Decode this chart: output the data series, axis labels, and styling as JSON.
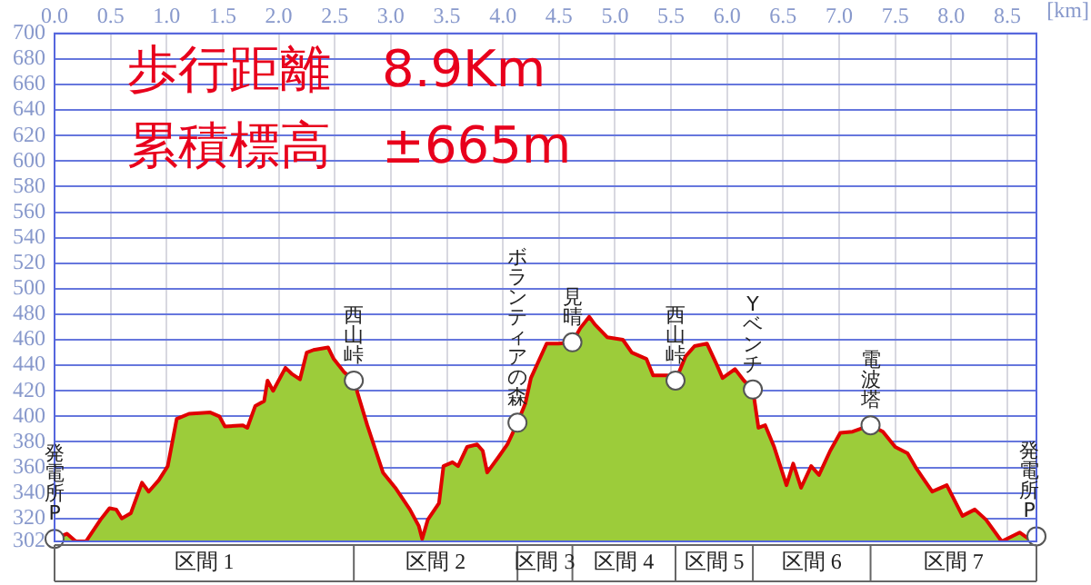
{
  "chart_data": {
    "type": "area",
    "xlabel": "[km]",
    "annotations": [
      "歩行距離　8.9Km",
      "累積標高　±665m",
      "区間 1",
      "区間 2",
      "区間 3",
      "区間 4",
      "区間 5",
      "区間 6",
      "区間 7"
    ],
    "xlim": [
      0,
      8.76
    ],
    "ylim": [
      302,
      700
    ],
    "xticks": [
      {
        "value": 0,
        "label": "0.0"
      },
      {
        "value": 0.5,
        "label": "0.5"
      },
      {
        "value": 1,
        "label": "1.0"
      },
      {
        "value": 1.5,
        "label": "1.5"
      },
      {
        "value": 2,
        "label": "2.0"
      },
      {
        "value": 2.5,
        "label": "2.5"
      },
      {
        "value": 3,
        "label": "3.0"
      },
      {
        "value": 3.5,
        "label": "3.5"
      },
      {
        "value": 4,
        "label": "4.0"
      },
      {
        "value": 4.5,
        "label": "4.5"
      },
      {
        "value": 5,
        "label": "5.0"
      },
      {
        "value": 5.5,
        "label": "5.5"
      },
      {
        "value": 6,
        "label": "6.0"
      },
      {
        "value": 6.5,
        "label": "6.5"
      },
      {
        "value": 7,
        "label": "7.0"
      },
      {
        "value": 7.5,
        "label": "7.5"
      },
      {
        "value": 8,
        "label": "8.0"
      },
      {
        "value": 8.5,
        "label": "8.5"
      }
    ],
    "yticks": [
      302,
      320,
      340,
      360,
      380,
      400,
      420,
      440,
      460,
      480,
      500,
      520,
      540,
      560,
      580,
      600,
      620,
      640,
      660,
      680,
      700
    ],
    "grid": true,
    "legend": false,
    "series": [
      {
        "color": "#9ccc3a",
        "x": [
          0,
          0.11,
          0.19,
          0.28,
          0.41,
          0.49,
          0.55,
          0.6,
          0.68,
          0.78,
          0.84,
          0.93,
          1.01,
          1.09,
          1.2,
          1.39,
          1.47,
          1.52,
          1.68,
          1.72,
          1.79,
          1.87,
          1.9,
          1.95,
          2.06,
          2.12,
          2.19,
          2.25,
          2.31,
          2.44,
          2.49,
          2.58,
          2.67,
          2.79,
          2.93,
          3.04,
          3.17,
          3.25,
          3.28,
          3.33,
          3.43,
          3.47,
          3.55,
          3.6,
          3.68,
          3.77,
          3.82,
          3.86,
          3.96,
          4.04,
          4.13,
          4.2,
          4.25,
          4.39,
          4.5,
          4.62,
          4.69,
          4.77,
          4.82,
          4.93,
          5.07,
          5.15,
          5.28,
          5.34,
          5.47,
          5.54,
          5.63,
          5.71,
          5.82,
          5.9,
          5.96,
          6.07,
          6.15,
          6.23,
          6.28,
          6.34,
          6.42,
          6.53,
          6.59,
          6.66,
          6.75,
          6.82,
          6.92,
          7.01,
          7.12,
          7.28,
          7.39,
          7.5,
          7.61,
          7.69,
          7.83,
          7.96,
          8.1,
          8.21,
          8.31,
          8.45,
          8.61,
          8.69,
          8.76
        ],
        "values": [
          304,
          308,
          302,
          302,
          319,
          328,
          327,
          320,
          324,
          348,
          341,
          350,
          361,
          398,
          402,
          403,
          400,
          392,
          393,
          391,
          408,
          412,
          428,
          420,
          438,
          433,
          429,
          450,
          452,
          454,
          445,
          435,
          428,
          393,
          356,
          344,
          327,
          314,
          304,
          319,
          332,
          361,
          364,
          361,
          376,
          378,
          373,
          356,
          368,
          378,
          395,
          410,
          430,
          457,
          457,
          458,
          469,
          478,
          472,
          462,
          460,
          450,
          445,
          432,
          432,
          428,
          447,
          455,
          457,
          442,
          430,
          437,
          428,
          421,
          391,
          393,
          376,
          346,
          363,
          344,
          361,
          354,
          373,
          387,
          388,
          393,
          388,
          376,
          371,
          359,
          341,
          346,
          322,
          327,
          319,
          302,
          309,
          304,
          306
        ]
      },
      {
        "type": "scatter",
        "color": "#ffffff",
        "marker": "circle",
        "x": [
          0,
          2.67,
          4.13,
          4.62,
          5.54,
          6.23,
          7.28,
          8.76
        ],
        "values": [
          304,
          428,
          395,
          458,
          428,
          421,
          393,
          306
        ],
        "value_labels": [
          "発電所P",
          "西山峠",
          "ボランティアの森",
          "見晴",
          "西山峠",
          "Yベンチ",
          "電波塔",
          "発電所P"
        ]
      }
    ]
  }
}
